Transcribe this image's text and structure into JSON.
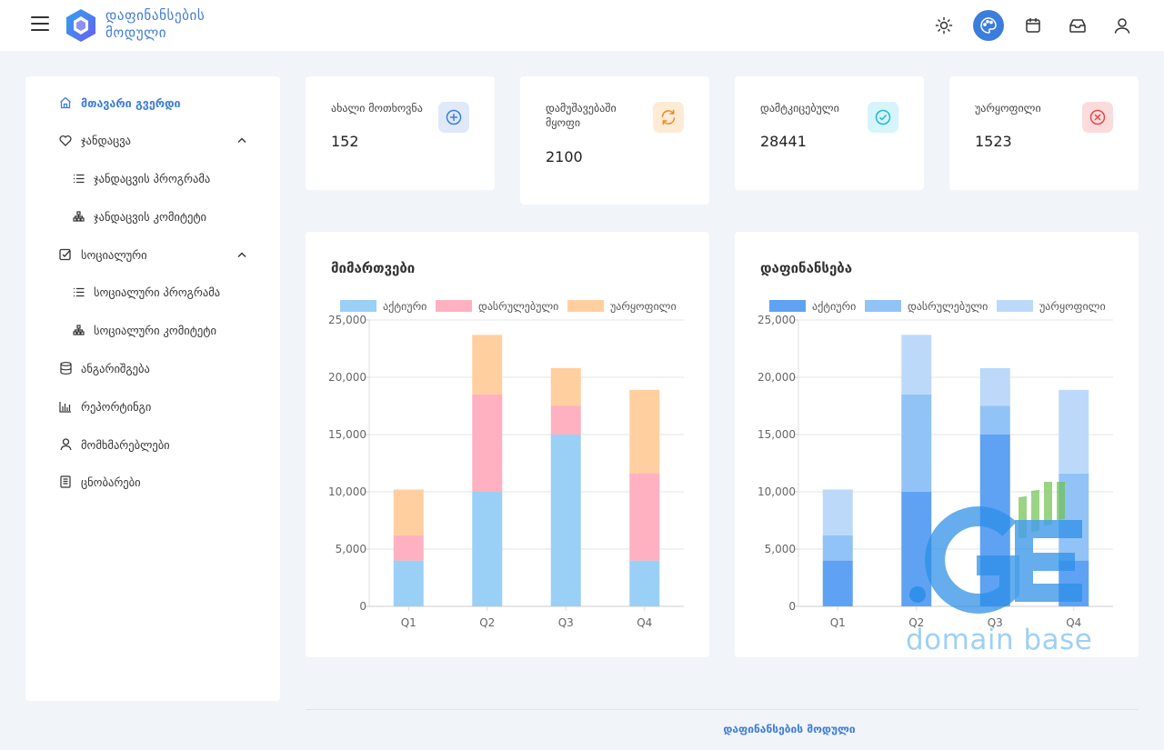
{
  "header": {
    "brand_line1": "დაფინანსების",
    "brand_line2": "მოდული",
    "icons": [
      "menu-icon",
      "sun-icon",
      "palette-icon",
      "calendar-icon",
      "inbox-icon",
      "user-icon"
    ]
  },
  "sidebar": {
    "items": [
      {
        "label": "მთავარი გვერდი",
        "icon": "home-icon"
      },
      {
        "label": "ჯანდაცვა",
        "icon": "heart-icon"
      },
      {
        "label": "ჯანდაცვის პროგრამა",
        "icon": "list-icon"
      },
      {
        "label": "ჯანდაცვის კომიტეტი",
        "icon": "sitemap-icon"
      },
      {
        "label": "სოციალური",
        "icon": "checkbox-icon"
      },
      {
        "label": "სოციალური პროგრამა",
        "icon": "list-icon"
      },
      {
        "label": "სოციალური კომიტეტი",
        "icon": "sitemap-icon"
      },
      {
        "label": "ანგარიშგება",
        "icon": "database-icon"
      },
      {
        "label": "რეპორტინგი",
        "icon": "bar-chart-icon"
      },
      {
        "label": "მომხმარებლები",
        "icon": "user-icon"
      },
      {
        "label": "ცნობარები",
        "icon": "book-icon"
      }
    ]
  },
  "stats": [
    {
      "label": "ახალი მოთხოვნა",
      "value": "152",
      "icon": "plus-circle-icon",
      "color": "#3b7ddd",
      "bg": "#dfe9f8"
    },
    {
      "label": "დამუშავებაში მყოფი",
      "value": "2100",
      "icon": "refresh-icon",
      "color": "#f08a24",
      "bg": "#fdebd6"
    },
    {
      "label": "დამტკიცებული",
      "value": "28441",
      "icon": "check-circle-icon",
      "color": "#20b8d4",
      "bg": "#d5f5fa"
    },
    {
      "label": "უარყოფილი",
      "value": "1523",
      "icon": "x-circle-icon",
      "color": "#e64a4a",
      "bg": "#fbdcdc"
    }
  ],
  "charts": {
    "left_title": "მიმართვები",
    "right_title": "დაფინანსება",
    "left_colors": [
      "#9ad0f5",
      "#ffb1c1",
      "#ffcf9f"
    ],
    "right_colors": [
      "#5fa2f4",
      "#92c3f7",
      "#bcd9fa"
    ]
  },
  "chart_data": [
    {
      "type": "bar",
      "stacked": true,
      "title": "მიმართვები",
      "categories": [
        "Q1",
        "Q2",
        "Q3",
        "Q4"
      ],
      "series": [
        {
          "name": "აქტიური",
          "values": [
            4000,
            10000,
            15000,
            4000
          ]
        },
        {
          "name": "დასრულებული",
          "values": [
            2200,
            8500,
            2500,
            7600
          ]
        },
        {
          "name": "უარყოფილი",
          "values": [
            4000,
            5200,
            3300,
            7300
          ]
        }
      ],
      "ylim": [
        0,
        25000
      ],
      "yticks": [
        "0",
        "5,000",
        "10,000",
        "15,000",
        "20,000",
        "25,000"
      ],
      "legend": "top"
    },
    {
      "type": "bar",
      "stacked": true,
      "title": "დაფინანსება",
      "categories": [
        "Q1",
        "Q2",
        "Q3",
        "Q4"
      ],
      "series": [
        {
          "name": "აქტიური",
          "values": [
            4000,
            10000,
            15000,
            4000
          ]
        },
        {
          "name": "დასრულებული",
          "values": [
            2200,
            8500,
            2500,
            7600
          ]
        },
        {
          "name": "უარყოფილი",
          "values": [
            4000,
            5200,
            3300,
            7300
          ]
        }
      ],
      "ylim": [
        0,
        25000
      ],
      "yticks": [
        "0",
        "5,000",
        "10,000",
        "15,000",
        "20,000",
        "25,000"
      ],
      "legend": "top"
    }
  ],
  "watermark": {
    "text": "domain base",
    "logo": ".GE"
  },
  "footer": {
    "text": "დაფინანსების მოდული"
  }
}
